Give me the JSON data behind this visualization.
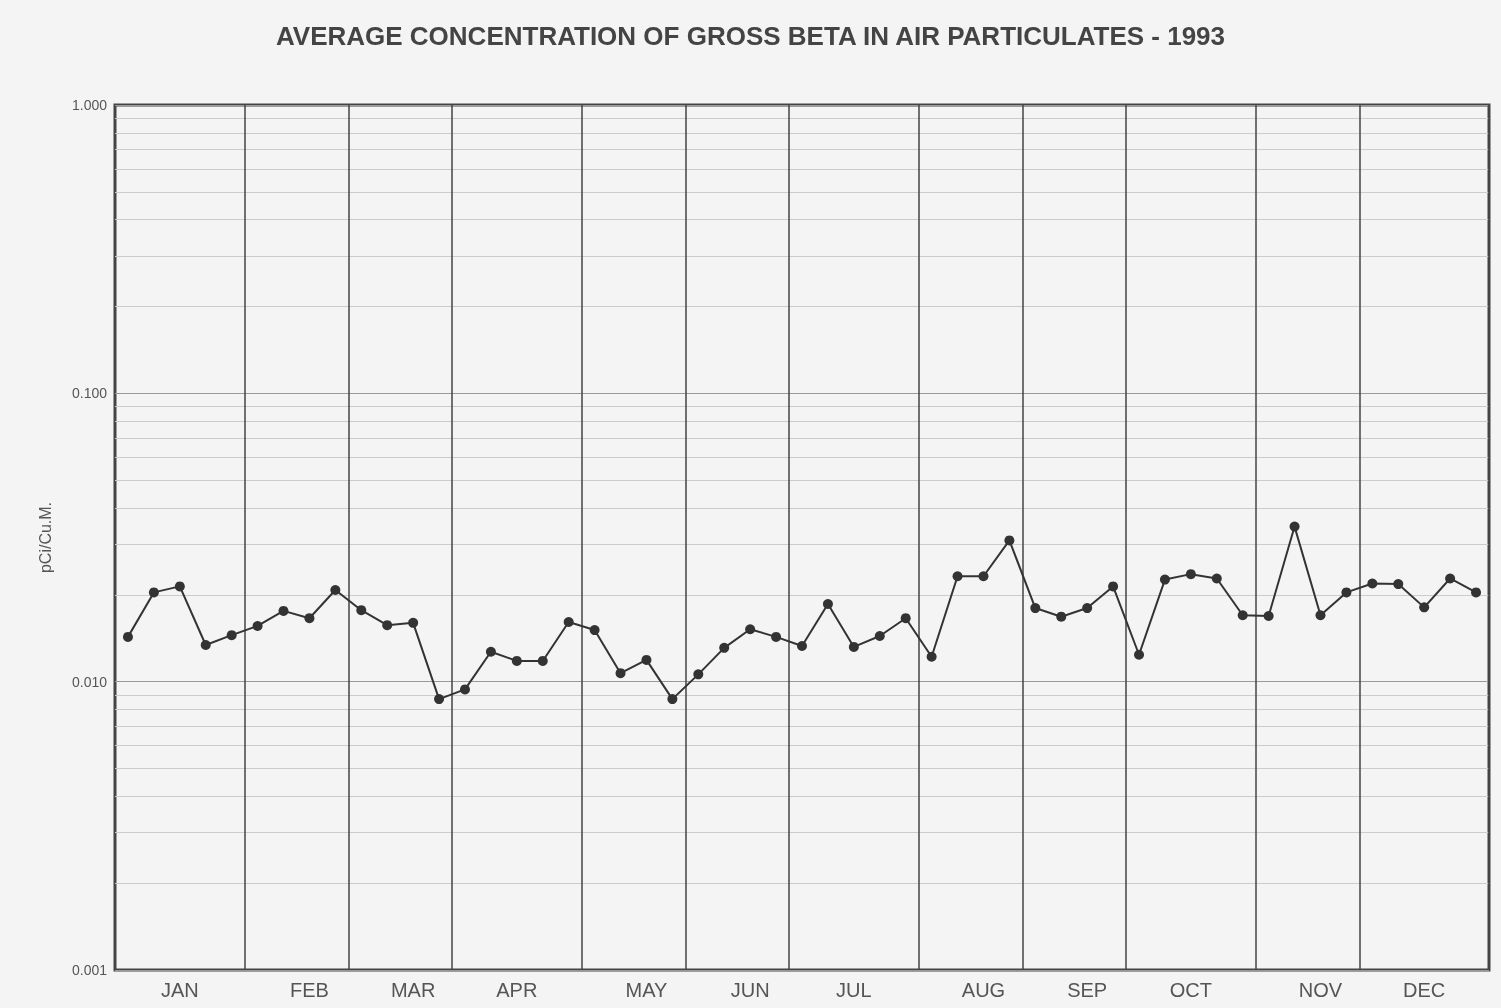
{
  "chart_data": {
    "type": "line",
    "title": "AVERAGE CONCENTRATION OF GROSS BETA IN AIR PARTICULATES - 1993",
    "ylabel": "pCi/Cu.M.",
    "categories": [
      null,
      null,
      "JAN",
      null,
      null,
      null,
      null,
      "FEB",
      null,
      null,
      null,
      "MAR",
      null,
      null,
      null,
      "APR",
      null,
      null,
      null,
      null,
      "MAY",
      null,
      null,
      null,
      "JUN",
      null,
      null,
      null,
      "JUL",
      null,
      null,
      null,
      null,
      "AUG",
      null,
      null,
      null,
      "SEP",
      null,
      null,
      null,
      "OCT",
      null,
      null,
      null,
      null,
      "NOV",
      null,
      null,
      null,
      "DEC",
      null,
      null
    ],
    "series": [
      {
        "color": "#333333",
        "values": [
          0.0143,
          0.0204,
          0.0214,
          0.0134,
          0.0145,
          0.0156,
          0.0176,
          0.0166,
          0.0208,
          0.0177,
          0.0157,
          0.016,
          0.0087,
          0.0094,
          0.0127,
          0.0118,
          0.0118,
          0.0161,
          0.0151,
          0.0107,
          0.0119,
          0.0087,
          0.0106,
          0.0131,
          0.0152,
          0.0143,
          0.0133,
          0.0186,
          0.0132,
          0.0144,
          0.0166,
          0.0122,
          0.0232,
          0.0232,
          0.0309,
          0.018,
          0.0168,
          0.018,
          0.0214,
          0.0124,
          0.0226,
          0.0236,
          0.0228,
          0.017,
          0.0169,
          0.0345,
          0.017,
          0.0204,
          0.0219,
          0.0218,
          0.0181,
          0.0228,
          0.0204
        ]
      }
    ],
    "ylim": [
      0.001,
      1
    ],
    "yticks": [
      {
        "value": 0.001,
        "label": "0.001"
      },
      {
        "value": 0.01,
        "label": "0.010"
      },
      {
        "value": 0.1,
        "label": "0.100"
      },
      {
        "value": 1,
        "label": "1.000"
      }
    ],
    "log": "y",
    "grid": true,
    "marker": "circle",
    "line_style": "solid"
  }
}
